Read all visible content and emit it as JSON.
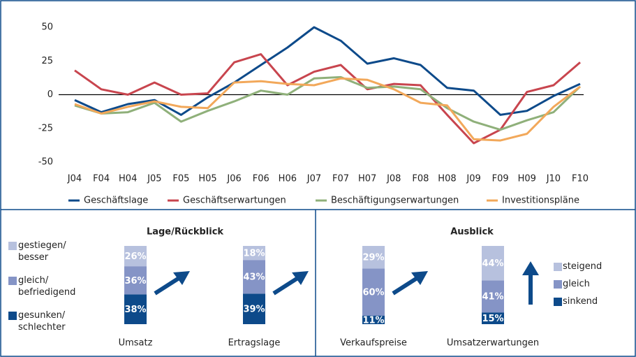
{
  "chart_data": [
    {
      "type": "line",
      "categories": [
        "J04",
        "F04",
        "H04",
        "J05",
        "F05",
        "H05",
        "J06",
        "F06",
        "H06",
        "J07",
        "F07",
        "H07",
        "J08",
        "F08",
        "H08",
        "J09",
        "F09",
        "H09",
        "J10",
        "F10"
      ],
      "ylim": [
        -50,
        50
      ],
      "yticks": [
        -50,
        -25,
        0,
        25,
        50
      ],
      "series": [
        {
          "name": "Geschäftslage",
          "color": "#0d4a8a",
          "values": [
            -4,
            -13,
            -7,
            -4,
            -15,
            -2,
            9,
            22,
            35,
            50,
            40,
            23,
            27,
            22,
            5,
            3,
            -15,
            -12,
            -1,
            8
          ]
        },
        {
          "name": "Geschäftserwartungen",
          "color": "#c8454e",
          "values": [
            18,
            4,
            0,
            9,
            0,
            1,
            24,
            30,
            7,
            17,
            22,
            4,
            8,
            7,
            -15,
            -36,
            -26,
            2,
            7,
            24
          ]
        },
        {
          "name": "Beschäftigungserwartungen",
          "color": "#8fb07a",
          "values": [
            -8,
            -14,
            -13,
            -6,
            -20,
            -12,
            -5,
            3,
            0,
            12,
            13,
            5,
            6,
            4,
            -10,
            -20,
            -26,
            -19,
            -13,
            6
          ]
        },
        {
          "name": "Investitionspläne",
          "color": "#f2a85a",
          "values": [
            -7,
            -14,
            -9,
            -5,
            -9,
            -10,
            9,
            10,
            8,
            7,
            12,
            11,
            4,
            -6,
            -8,
            -33,
            -34,
            -29,
            -9,
            6
          ]
        }
      ]
    },
    {
      "type": "stacked-bar",
      "title": "Lage/Rückblick",
      "categories": [
        "Umsatz",
        "Ertragslage"
      ],
      "series": [
        {
          "name": "gestiegen/ besser",
          "color": "#b7c1de",
          "values": [
            26,
            18
          ],
          "value_labels": [
            "26%",
            "18%"
          ]
        },
        {
          "name": "gleich/ befriedigend",
          "color": "#8594c6",
          "values": [
            36,
            43
          ],
          "value_labels": [
            "36%",
            "43%"
          ]
        },
        {
          "name": "gesunken/ schlechter",
          "color": "#0d4a8a",
          "values": [
            38,
            39
          ],
          "value_labels": [
            "38%",
            "39%"
          ]
        }
      ]
    },
    {
      "type": "stacked-bar",
      "title": "Ausblick",
      "categories": [
        "Verkaufspreise",
        "Umsatzerwartungen"
      ],
      "series": [
        {
          "name": "steigend",
          "color": "#b7c1de",
          "values": [
            29,
            44
          ],
          "value_labels": [
            "29%",
            "44%"
          ]
        },
        {
          "name": "gleich",
          "color": "#8594c6",
          "values": [
            60,
            41
          ],
          "value_labels": [
            "60%",
            "41%"
          ]
        },
        {
          "name": "sinkend",
          "color": "#0d4a8a",
          "values": [
            11,
            15
          ],
          "value_labels": [
            "11%",
            "15%"
          ]
        }
      ]
    }
  ]
}
